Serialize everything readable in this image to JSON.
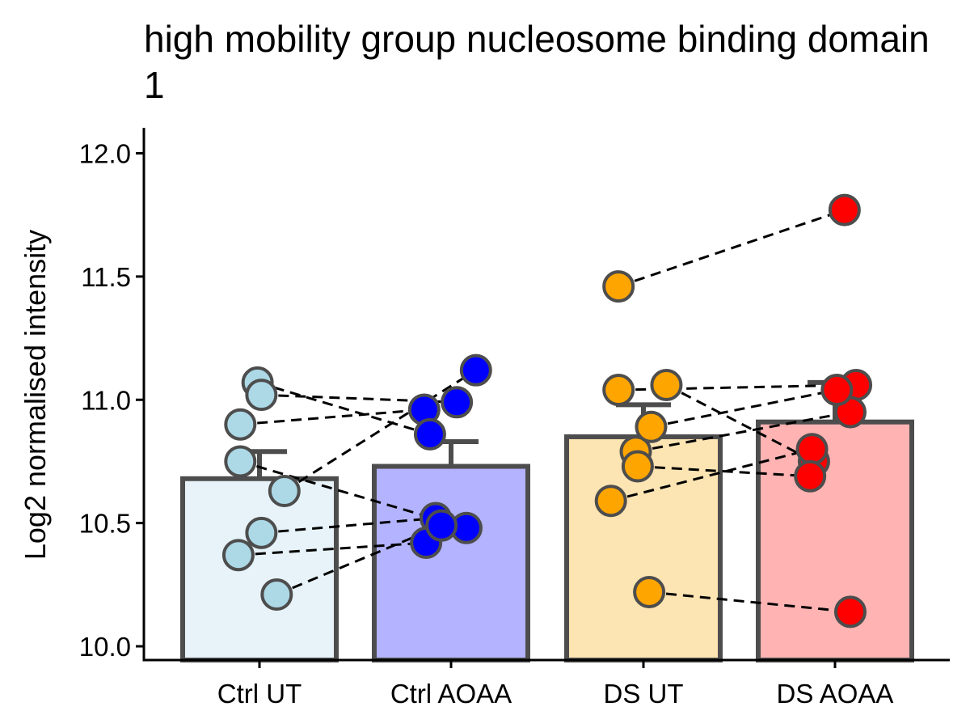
{
  "chart_data": {
    "type": "bar",
    "title_lines": [
      "high mobility group nucleosome binding domain",
      "1"
    ],
    "xlabel": "",
    "ylabel": "Log2 normalised intensity",
    "categories": [
      "Ctrl UT",
      "Ctrl AOAA",
      "DS UT",
      "DS AOAA"
    ],
    "colors": {
      "bar_fill": [
        "#e7f3f9",
        "#b3b3ff",
        "#fde4b3",
        "#ffb3b3"
      ],
      "point_fill": [
        "#add8e6",
        "#0000ff",
        "#ffa500",
        "#ff0000"
      ],
      "outline": "#4d4d4d",
      "link": "#000000"
    },
    "means": [
      10.68,
      10.73,
      10.85,
      10.91
    ],
    "error_upper": [
      10.79,
      10.83,
      10.98,
      11.07
    ],
    "points": [
      {
        "x": [
          -0.1,
          -0.01,
          0.13,
          0.01,
          0.01,
          -0.11,
          -0.1,
          0.09
        ],
        "y": [
          10.9,
          11.07,
          10.63,
          11.02,
          10.46,
          10.37,
          10.75,
          10.21
        ]
      },
      {
        "x": [
          -0.14,
          -0.11,
          0.13,
          0.03,
          -0.08,
          -0.13,
          0.08,
          -0.05
        ],
        "y": [
          10.96,
          10.86,
          11.12,
          10.99,
          10.52,
          10.42,
          10.48,
          10.49
        ]
      },
      {
        "x": [
          -0.13,
          -0.13,
          -0.04,
          0.04,
          0.12,
          -0.17,
          -0.03,
          0.03
        ],
        "y": [
          11.46,
          11.04,
          10.79,
          10.89,
          11.06,
          10.59,
          10.73,
          10.22
        ]
      },
      {
        "x": [
          0.05,
          0.11,
          0.08,
          0.01,
          -0.11,
          -0.12,
          -0.13,
          0.08
        ],
        "y": [
          11.77,
          11.06,
          10.95,
          11.04,
          10.75,
          10.8,
          10.69,
          10.14
        ]
      }
    ],
    "ylim": [
      9.95,
      12.1
    ],
    "yticks": [
      10.0,
      10.5,
      11.0,
      11.5,
      12.0
    ],
    "ytick_labels": [
      "10.0",
      "10.5",
      "11.0",
      "11.5",
      "12.0"
    ],
    "grid": false,
    "legend": "none"
  }
}
